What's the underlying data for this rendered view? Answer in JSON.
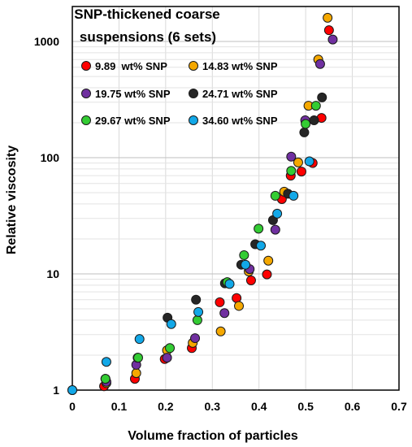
{
  "chart_data": {
    "type": "scatter",
    "title_lines": [
      "SNP-thickened coarse",
      "suspensions (6 sets)"
    ],
    "xlabel": "Volume fraction of particles",
    "ylabel": "Relative viscosity",
    "xlim": [
      0,
      0.7
    ],
    "ylim": [
      1,
      2000
    ],
    "yscale": "log",
    "grid": true,
    "legend_position": "top-left, inside plot",
    "x_ticks": [
      "0",
      "0.1",
      "0.2",
      "0.3",
      "0.4",
      "0.5",
      "0.6",
      "0.7"
    ],
    "x_tick_values": [
      0,
      0.1,
      0.2,
      0.3,
      0.4,
      0.5,
      0.6,
      0.7
    ],
    "y_ticks": [
      "1",
      "10",
      "100",
      "1000"
    ],
    "y_tick_values": [
      1,
      10,
      100,
      1000
    ],
    "series": [
      {
        "name": "9.89  wt% SNP",
        "color": "#ff0000",
        "x": [
          0,
          0.068,
          0.134,
          0.198,
          0.256,
          0.316,
          0.352,
          0.383,
          0.417,
          0.449,
          0.468,
          0.491,
          0.515,
          0.534,
          0.55
        ],
        "y": [
          1,
          1.08,
          1.25,
          1.85,
          2.3,
          5.7,
          6.2,
          8.8,
          9.9,
          44,
          70,
          76,
          90,
          220,
          1250
        ]
      },
      {
        "name": "14.83 wt% SNP",
        "color": "#f5a800",
        "x": [
          0.073,
          0.137,
          0.203,
          0.258,
          0.318,
          0.357,
          0.378,
          0.42,
          0.454,
          0.484,
          0.506,
          0.527,
          0.547
        ],
        "y": [
          1.15,
          1.4,
          2.2,
          2.55,
          3.2,
          5.3,
          10.5,
          13,
          51,
          91,
          280,
          700,
          1600
        ]
      },
      {
        "name": "19.75 wt% SNP",
        "color": "#7030a0",
        "x": [
          0.073,
          0.137,
          0.203,
          0.263,
          0.326,
          0.38,
          0.435,
          0.469,
          0.499,
          0.531,
          0.558
        ],
        "y": [
          1.18,
          1.65,
          1.9,
          2.8,
          4.6,
          11,
          24,
          102,
          210,
          640,
          1040
        ]
      },
      {
        "name": "24.71 wt% SNP",
        "color": "#262626",
        "x": [
          0.071,
          0.14,
          0.204,
          0.265,
          0.327,
          0.362,
          0.392,
          0.43,
          0.462,
          0.497,
          0.518,
          0.535
        ],
        "y": [
          1.25,
          1.9,
          4.2,
          6,
          8.3,
          12,
          18,
          29,
          49,
          165,
          210,
          330
        ]
      },
      {
        "name": "29.67 wt% SNP",
        "color": "#33cc33",
        "x": [
          0.071,
          0.141,
          0.209,
          0.268,
          0.332,
          0.368,
          0.399,
          0.435,
          0.469,
          0.5,
          0.522
        ],
        "y": [
          1.25,
          1.9,
          2.3,
          4,
          8.5,
          14.5,
          24.5,
          47,
          77,
          195,
          280
        ]
      },
      {
        "name": "34.60 wt% SNP",
        "color": "#12a8e8",
        "x": [
          0,
          0.073,
          0.144,
          0.212,
          0.27,
          0.337,
          0.371,
          0.404,
          0.439,
          0.474,
          0.508
        ],
        "y": [
          1,
          1.75,
          2.75,
          3.7,
          4.7,
          8.2,
          12,
          17.5,
          33,
          47,
          93
        ]
      }
    ]
  }
}
